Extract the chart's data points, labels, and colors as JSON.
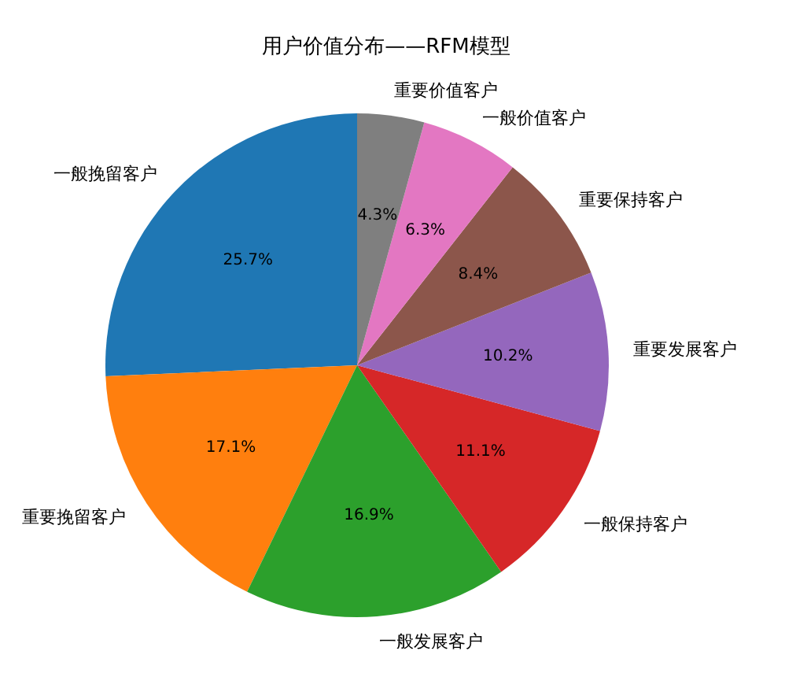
{
  "chart_data": {
    "type": "pie",
    "title": "用户价值分布——RFM模型",
    "categories": [
      "一般挽留客户",
      "重要挽留客户",
      "一般发展客户",
      "一般保持客户",
      "重要发展客户",
      "重要保持客户",
      "一般价值客户",
      "重要价值客户"
    ],
    "values": [
      25.7,
      17.1,
      16.9,
      11.1,
      10.2,
      8.4,
      6.3,
      4.3
    ],
    "colors": [
      "#1f77b4",
      "#ff7f0e",
      "#2ca02c",
      "#d62728",
      "#9467bd",
      "#8c564b",
      "#e377c2",
      "#7f7f7f"
    ],
    "value_labels": [
      "25.7%",
      "17.1%",
      "16.9%",
      "11.1%",
      "10.2%",
      "8.4%",
      "6.3%",
      "4.3%"
    ]
  }
}
